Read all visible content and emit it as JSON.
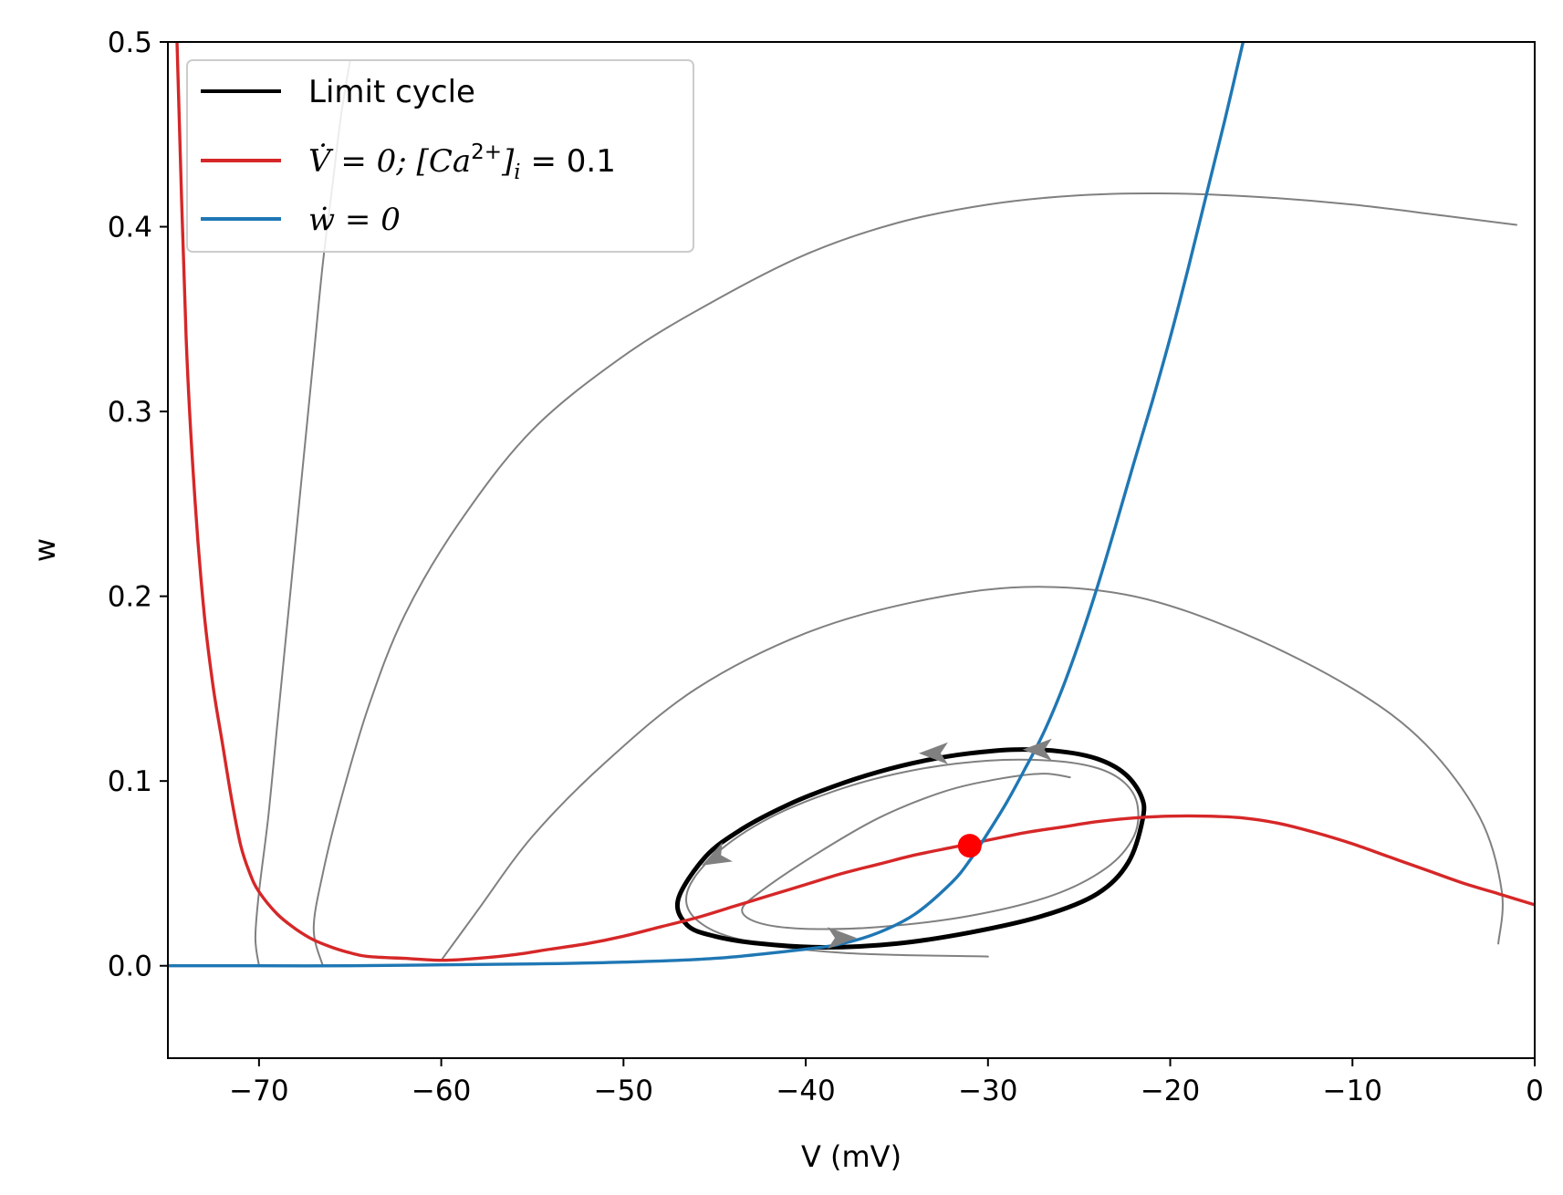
{
  "chart_data": {
    "type": "line",
    "xlabel": "V (mV)",
    "ylabel": "w",
    "xlim": [
      -75,
      0
    ],
    "ylim": [
      -0.05,
      0.5
    ],
    "x_ticks": [
      -70,
      -60,
      -50,
      -40,
      -30,
      -20,
      -10,
      0
    ],
    "x_tick_labels": [
      "−70",
      "−60",
      "−50",
      "−40",
      "−30",
      "−20",
      "−10",
      "0"
    ],
    "y_ticks": [
      0.0,
      0.1,
      0.2,
      0.3,
      0.4,
      0.5
    ],
    "y_tick_labels": [
      "0.0",
      "0.1",
      "0.2",
      "0.3",
      "0.4",
      "0.5"
    ],
    "grid": false,
    "legend_placement": "top-left",
    "legend": [
      {
        "label": "Limit cycle",
        "color": "#000000"
      },
      {
        "label": "V̇ = 0; [Ca2+]i = 0.1",
        "color": "#d62728"
      },
      {
        "label": "ẇ = 0",
        "color": "#1f77b4"
      }
    ],
    "legend_parts": {
      "v_lhs": "V̇ = 0; [",
      "ca": "Ca",
      "ca_sup": "2+",
      "ca_close": "]",
      "ca_sub": "i",
      "v_rhs": " = 0.1",
      "w_label": "ẇ = 0"
    },
    "fixed_point": {
      "x": -31.0,
      "y": 0.065,
      "color": "#ff0000"
    },
    "series": [
      {
        "name": "V̇ = 0; [Ca2+]i = 0.1",
        "color": "#d62728",
        "x": [
          -74.5,
          -74.0,
          -73.5,
          -73.0,
          -72.5,
          -72.0,
          -71.5,
          -71.0,
          -70.5,
          -70.0,
          -69.0,
          -68.0,
          -67.0,
          -66.0,
          -65.0,
          -64.0,
          -62.0,
          -60.0,
          -58.0,
          -56.0,
          -54.0,
          -52.0,
          -50.0,
          -48.0,
          -46.0,
          -44.0,
          -42.0,
          -40.0,
          -38.0,
          -36.0,
          -34.0,
          -32.0,
          -30.0,
          -28.0,
          -26.0,
          -24.0,
          -22.0,
          -20.0,
          -18.0,
          -16.0,
          -14.0,
          -12.0,
          -10.0,
          -8.0,
          -6.0,
          -4.0,
          -2.0,
          0.0
        ],
        "y": [
          0.5,
          0.34,
          0.25,
          0.19,
          0.15,
          0.12,
          0.09,
          0.065,
          0.05,
          0.04,
          0.028,
          0.02,
          0.014,
          0.01,
          0.007,
          0.005,
          0.004,
          0.003,
          0.004,
          0.006,
          0.009,
          0.012,
          0.016,
          0.021,
          0.026,
          0.032,
          0.038,
          0.044,
          0.05,
          0.055,
          0.06,
          0.064,
          0.068,
          0.072,
          0.075,
          0.078,
          0.08,
          0.081,
          0.081,
          0.08,
          0.077,
          0.072,
          0.066,
          0.059,
          0.052,
          0.045,
          0.039,
          0.033
        ]
      },
      {
        "name": "ẇ = 0",
        "color": "#1f77b4",
        "x": [
          -75,
          -70,
          -65,
          -60,
          -55,
          -50,
          -45,
          -40,
          -38,
          -36,
          -34,
          -32,
          -31,
          -30,
          -29,
          -28,
          -27,
          -26,
          -25,
          -24,
          -23,
          -22,
          -21,
          -20,
          -19,
          -18,
          -17,
          -16
        ],
        "y": [
          0.0,
          0.0,
          0.0,
          0.0005,
          0.001,
          0.002,
          0.004,
          0.009,
          0.012,
          0.018,
          0.028,
          0.045,
          0.057,
          0.072,
          0.088,
          0.106,
          0.125,
          0.148,
          0.175,
          0.205,
          0.238,
          0.272,
          0.305,
          0.34,
          0.378,
          0.418,
          0.458,
          0.5
        ]
      },
      {
        "name": "",
        "role": "limit-cycle",
        "color": "#000000",
        "closed": true,
        "x": [
          -21.5,
          -21.6,
          -22.5,
          -24.0,
          -26.0,
          -28.5,
          -31.0,
          -33.5,
          -36.0,
          -38.5,
          -41.0,
          -43.5,
          -45.5,
          -47.0,
          -46.5,
          -45.0,
          -42.5,
          -39.0,
          -35.0,
          -31.0,
          -27.0,
          -24.0,
          -22.3
        ],
        "y": [
          0.08,
          0.092,
          0.104,
          0.112,
          0.116,
          0.117,
          0.115,
          0.111,
          0.105,
          0.097,
          0.087,
          0.074,
          0.059,
          0.036,
          0.022,
          0.016,
          0.012,
          0.01,
          0.012,
          0.018,
          0.027,
          0.039,
          0.056
        ]
      },
      {
        "name": "",
        "role": "trajectory",
        "color": "#808080",
        "x": [
          -70.0,
          -70.2,
          -70.0,
          -69.5,
          -69.0,
          -68.5,
          -68.0,
          -67.5,
          -67.0,
          -66.5,
          -66.0,
          -65.5,
          -65.0
        ],
        "y": [
          0.0,
          0.015,
          0.04,
          0.08,
          0.13,
          0.18,
          0.23,
          0.28,
          0.33,
          0.38,
          0.42,
          0.46,
          0.49
        ]
      },
      {
        "name": "",
        "role": "trajectory",
        "color": "#808080",
        "x": [
          -66.5,
          -67.0,
          -66.5,
          -65.5,
          -64.0,
          -62.0,
          -59.0,
          -55.0,
          -50.0,
          -45.0,
          -40.0,
          -35.0,
          -30.0,
          -25.0,
          -20.0,
          -15.0,
          -10.0,
          -5.0,
          -1.0
        ],
        "y": [
          0.0,
          0.02,
          0.05,
          0.09,
          0.14,
          0.19,
          0.24,
          0.29,
          0.33,
          0.36,
          0.385,
          0.402,
          0.412,
          0.417,
          0.418,
          0.416,
          0.412,
          0.406,
          0.401
        ]
      },
      {
        "name": "",
        "role": "trajectory",
        "color": "#808080",
        "x": [
          -60.0,
          -58.0,
          -55.0,
          -51.0,
          -46.0,
          -40.0,
          -34.0,
          -28.0,
          -22.0,
          -16.0,
          -10.0,
          -6.0,
          -3.0,
          -1.8,
          -2.0
        ],
        "y": [
          0.003,
          0.03,
          0.07,
          0.11,
          0.15,
          0.18,
          0.197,
          0.205,
          0.2,
          0.18,
          0.15,
          0.12,
          0.08,
          0.04,
          0.012
        ]
      },
      {
        "name": "",
        "role": "trajectory",
        "color": "#808080",
        "x": [
          -25.5,
          -27.0,
          -29.5,
          -32.5,
          -36.0,
          -39.5,
          -42.5,
          -43.5,
          -42.5,
          -40.0,
          -36.0,
          -31.0,
          -26.5,
          -23.5,
          -22.0,
          -21.8,
          -22.5,
          -24.0,
          -26.5,
          -30.0,
          -34.0,
          -38.0,
          -42.0,
          -45.0,
          -46.5,
          -46.0,
          -43.5,
          -38.0,
          -30.0
        ],
        "y": [
          0.102,
          0.104,
          0.101,
          0.094,
          0.08,
          0.06,
          0.04,
          0.03,
          0.023,
          0.02,
          0.021,
          0.027,
          0.038,
          0.053,
          0.07,
          0.087,
          0.099,
          0.107,
          0.111,
          0.111,
          0.106,
          0.096,
          0.08,
          0.06,
          0.04,
          0.025,
          0.014,
          0.007,
          0.005
        ]
      }
    ],
    "arrows": [
      {
        "x": -33.0,
        "y": 0.115,
        "direction": "left"
      },
      {
        "x": -27.3,
        "y": 0.117,
        "direction": "left"
      },
      {
        "x": -45.0,
        "y": 0.058,
        "direction": "down-left"
      },
      {
        "x": -38.0,
        "y": 0.015,
        "direction": "right"
      }
    ]
  }
}
